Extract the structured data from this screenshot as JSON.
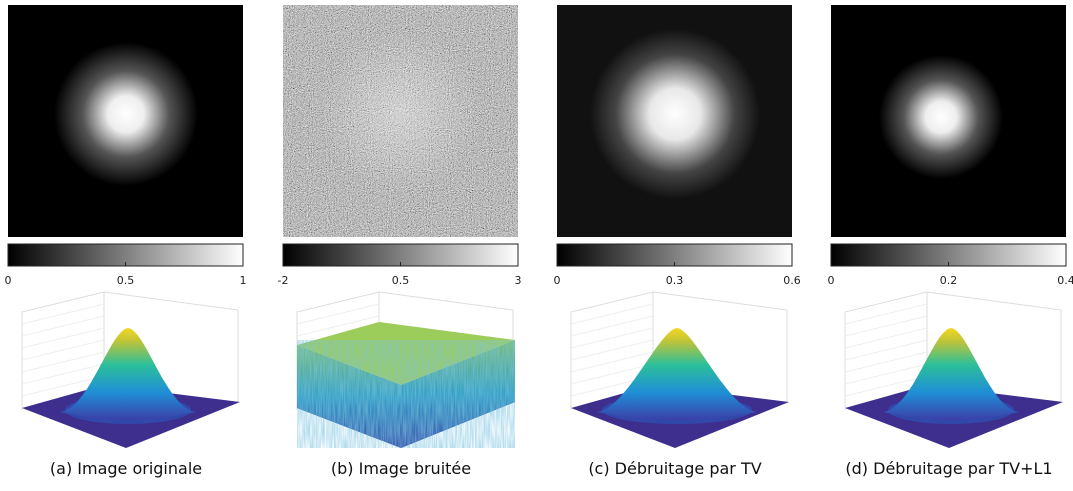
{
  "panels": [
    {
      "caption": "(a) Image originale",
      "colorbar": {
        "lim": [
          0,
          1
        ],
        "ticks": [
          0,
          0.5,
          1
        ]
      }
    },
    {
      "caption": "(b) Image bruitée",
      "colorbar": {
        "lim": [
          -2,
          3
        ],
        "ticks": [
          -2,
          0.5,
          3
        ]
      }
    },
    {
      "caption": "(c) Débruitage par TV",
      "colorbar": {
        "lim": [
          0,
          0.6
        ],
        "ticks": [
          0,
          0.3,
          0.6
        ]
      }
    },
    {
      "caption": "(d) Débruitage par TV+L1",
      "colorbar": {
        "lim": [
          0,
          0.4
        ],
        "ticks": [
          0,
          0.2,
          0.4
        ]
      }
    }
  ]
}
